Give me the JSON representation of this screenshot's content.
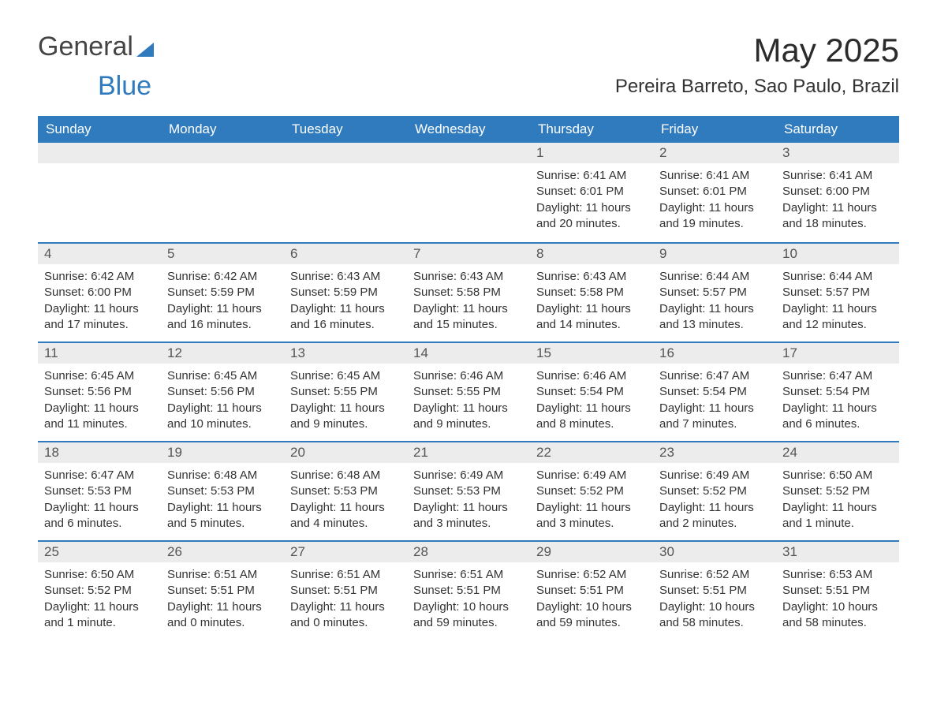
{
  "logo": {
    "text_general": "General",
    "text_blue": "Blue",
    "blue_color": "#2f7bbd",
    "general_color": "#444444"
  },
  "header": {
    "month_title": "May 2025",
    "location": "Pereira Barreto, Sao Paulo, Brazil"
  },
  "colors": {
    "header_bg": "#2f7bbd",
    "header_text": "#ffffff",
    "daybar_bg": "#ececec",
    "daybar_border": "#2f7bbd",
    "text": "#333333"
  },
  "calendar": {
    "type": "table",
    "columns": [
      "Sunday",
      "Monday",
      "Tuesday",
      "Wednesday",
      "Thursday",
      "Friday",
      "Saturday"
    ],
    "weeks": [
      [
        null,
        null,
        null,
        null,
        {
          "day": "1",
          "sunrise": "Sunrise: 6:41 AM",
          "sunset": "Sunset: 6:01 PM",
          "daylight": "Daylight: 11 hours and 20 minutes."
        },
        {
          "day": "2",
          "sunrise": "Sunrise: 6:41 AM",
          "sunset": "Sunset: 6:01 PM",
          "daylight": "Daylight: 11 hours and 19 minutes."
        },
        {
          "day": "3",
          "sunrise": "Sunrise: 6:41 AM",
          "sunset": "Sunset: 6:00 PM",
          "daylight": "Daylight: 11 hours and 18 minutes."
        }
      ],
      [
        {
          "day": "4",
          "sunrise": "Sunrise: 6:42 AM",
          "sunset": "Sunset: 6:00 PM",
          "daylight": "Daylight: 11 hours and 17 minutes."
        },
        {
          "day": "5",
          "sunrise": "Sunrise: 6:42 AM",
          "sunset": "Sunset: 5:59 PM",
          "daylight": "Daylight: 11 hours and 16 minutes."
        },
        {
          "day": "6",
          "sunrise": "Sunrise: 6:43 AM",
          "sunset": "Sunset: 5:59 PM",
          "daylight": "Daylight: 11 hours and 16 minutes."
        },
        {
          "day": "7",
          "sunrise": "Sunrise: 6:43 AM",
          "sunset": "Sunset: 5:58 PM",
          "daylight": "Daylight: 11 hours and 15 minutes."
        },
        {
          "day": "8",
          "sunrise": "Sunrise: 6:43 AM",
          "sunset": "Sunset: 5:58 PM",
          "daylight": "Daylight: 11 hours and 14 minutes."
        },
        {
          "day": "9",
          "sunrise": "Sunrise: 6:44 AM",
          "sunset": "Sunset: 5:57 PM",
          "daylight": "Daylight: 11 hours and 13 minutes."
        },
        {
          "day": "10",
          "sunrise": "Sunrise: 6:44 AM",
          "sunset": "Sunset: 5:57 PM",
          "daylight": "Daylight: 11 hours and 12 minutes."
        }
      ],
      [
        {
          "day": "11",
          "sunrise": "Sunrise: 6:45 AM",
          "sunset": "Sunset: 5:56 PM",
          "daylight": "Daylight: 11 hours and 11 minutes."
        },
        {
          "day": "12",
          "sunrise": "Sunrise: 6:45 AM",
          "sunset": "Sunset: 5:56 PM",
          "daylight": "Daylight: 11 hours and 10 minutes."
        },
        {
          "day": "13",
          "sunrise": "Sunrise: 6:45 AM",
          "sunset": "Sunset: 5:55 PM",
          "daylight": "Daylight: 11 hours and 9 minutes."
        },
        {
          "day": "14",
          "sunrise": "Sunrise: 6:46 AM",
          "sunset": "Sunset: 5:55 PM",
          "daylight": "Daylight: 11 hours and 9 minutes."
        },
        {
          "day": "15",
          "sunrise": "Sunrise: 6:46 AM",
          "sunset": "Sunset: 5:54 PM",
          "daylight": "Daylight: 11 hours and 8 minutes."
        },
        {
          "day": "16",
          "sunrise": "Sunrise: 6:47 AM",
          "sunset": "Sunset: 5:54 PM",
          "daylight": "Daylight: 11 hours and 7 minutes."
        },
        {
          "day": "17",
          "sunrise": "Sunrise: 6:47 AM",
          "sunset": "Sunset: 5:54 PM",
          "daylight": "Daylight: 11 hours and 6 minutes."
        }
      ],
      [
        {
          "day": "18",
          "sunrise": "Sunrise: 6:47 AM",
          "sunset": "Sunset: 5:53 PM",
          "daylight": "Daylight: 11 hours and 6 minutes."
        },
        {
          "day": "19",
          "sunrise": "Sunrise: 6:48 AM",
          "sunset": "Sunset: 5:53 PM",
          "daylight": "Daylight: 11 hours and 5 minutes."
        },
        {
          "day": "20",
          "sunrise": "Sunrise: 6:48 AM",
          "sunset": "Sunset: 5:53 PM",
          "daylight": "Daylight: 11 hours and 4 minutes."
        },
        {
          "day": "21",
          "sunrise": "Sunrise: 6:49 AM",
          "sunset": "Sunset: 5:53 PM",
          "daylight": "Daylight: 11 hours and 3 minutes."
        },
        {
          "day": "22",
          "sunrise": "Sunrise: 6:49 AM",
          "sunset": "Sunset: 5:52 PM",
          "daylight": "Daylight: 11 hours and 3 minutes."
        },
        {
          "day": "23",
          "sunrise": "Sunrise: 6:49 AM",
          "sunset": "Sunset: 5:52 PM",
          "daylight": "Daylight: 11 hours and 2 minutes."
        },
        {
          "day": "24",
          "sunrise": "Sunrise: 6:50 AM",
          "sunset": "Sunset: 5:52 PM",
          "daylight": "Daylight: 11 hours and 1 minute."
        }
      ],
      [
        {
          "day": "25",
          "sunrise": "Sunrise: 6:50 AM",
          "sunset": "Sunset: 5:52 PM",
          "daylight": "Daylight: 11 hours and 1 minute."
        },
        {
          "day": "26",
          "sunrise": "Sunrise: 6:51 AM",
          "sunset": "Sunset: 5:51 PM",
          "daylight": "Daylight: 11 hours and 0 minutes."
        },
        {
          "day": "27",
          "sunrise": "Sunrise: 6:51 AM",
          "sunset": "Sunset: 5:51 PM",
          "daylight": "Daylight: 11 hours and 0 minutes."
        },
        {
          "day": "28",
          "sunrise": "Sunrise: 6:51 AM",
          "sunset": "Sunset: 5:51 PM",
          "daylight": "Daylight: 10 hours and 59 minutes."
        },
        {
          "day": "29",
          "sunrise": "Sunrise: 6:52 AM",
          "sunset": "Sunset: 5:51 PM",
          "daylight": "Daylight: 10 hours and 59 minutes."
        },
        {
          "day": "30",
          "sunrise": "Sunrise: 6:52 AM",
          "sunset": "Sunset: 5:51 PM",
          "daylight": "Daylight: 10 hours and 58 minutes."
        },
        {
          "day": "31",
          "sunrise": "Sunrise: 6:53 AM",
          "sunset": "Sunset: 5:51 PM",
          "daylight": "Daylight: 10 hours and 58 minutes."
        }
      ]
    ]
  }
}
